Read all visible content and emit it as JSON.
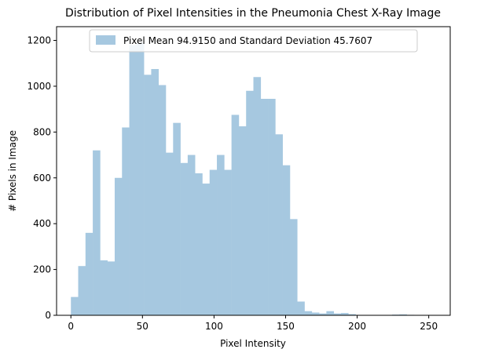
{
  "chart_data": {
    "type": "bar",
    "title": "Distribution of Pixel Intensities in the Pneumonia Chest X-Ray Image",
    "xlabel": "Pixel Intensity",
    "ylabel": "# Pixels in Image",
    "xlim": [
      -10,
      265
    ],
    "ylim": [
      0,
      1260
    ],
    "x_ticks": [
      0,
      50,
      100,
      150,
      200,
      250
    ],
    "y_ticks": [
      0,
      200,
      400,
      600,
      800,
      1000,
      1200
    ],
    "bin_width": 5.1,
    "bin_starts": [
      0.0,
      5.1,
      10.2,
      15.3,
      20.4,
      25.5,
      30.6,
      35.7,
      40.8,
      45.9,
      51.0,
      56.1,
      61.2,
      66.3,
      71.4,
      76.5,
      81.6,
      86.7,
      91.8,
      96.9,
      102.0,
      107.1,
      112.2,
      117.3,
      122.4,
      127.5,
      132.6,
      137.7,
      142.8,
      147.9,
      153.0,
      158.1,
      163.2,
      168.3,
      173.4,
      178.5,
      183.6,
      188.7,
      193.8,
      198.9,
      204.0,
      209.1,
      214.2,
      219.3,
      224.4,
      229.5,
      234.6,
      239.7,
      244.8,
      249.9
    ],
    "values": [
      80,
      215,
      360,
      720,
      240,
      235,
      600,
      820,
      1180,
      1190,
      1050,
      1075,
      1005,
      710,
      840,
      665,
      700,
      620,
      575,
      635,
      700,
      635,
      875,
      825,
      980,
      1040,
      945,
      945,
      790,
      655,
      420,
      60,
      18,
      12,
      8,
      18,
      8,
      10,
      5,
      0,
      0,
      0,
      0,
      0,
      3,
      4,
      2,
      0,
      0,
      0
    ],
    "bar_color": "#a6c8e0",
    "legend": {
      "entries": [
        "Pixel Mean 94.9150 and Standard Deviation 45.7607"
      ],
      "placement": "upper center"
    }
  }
}
